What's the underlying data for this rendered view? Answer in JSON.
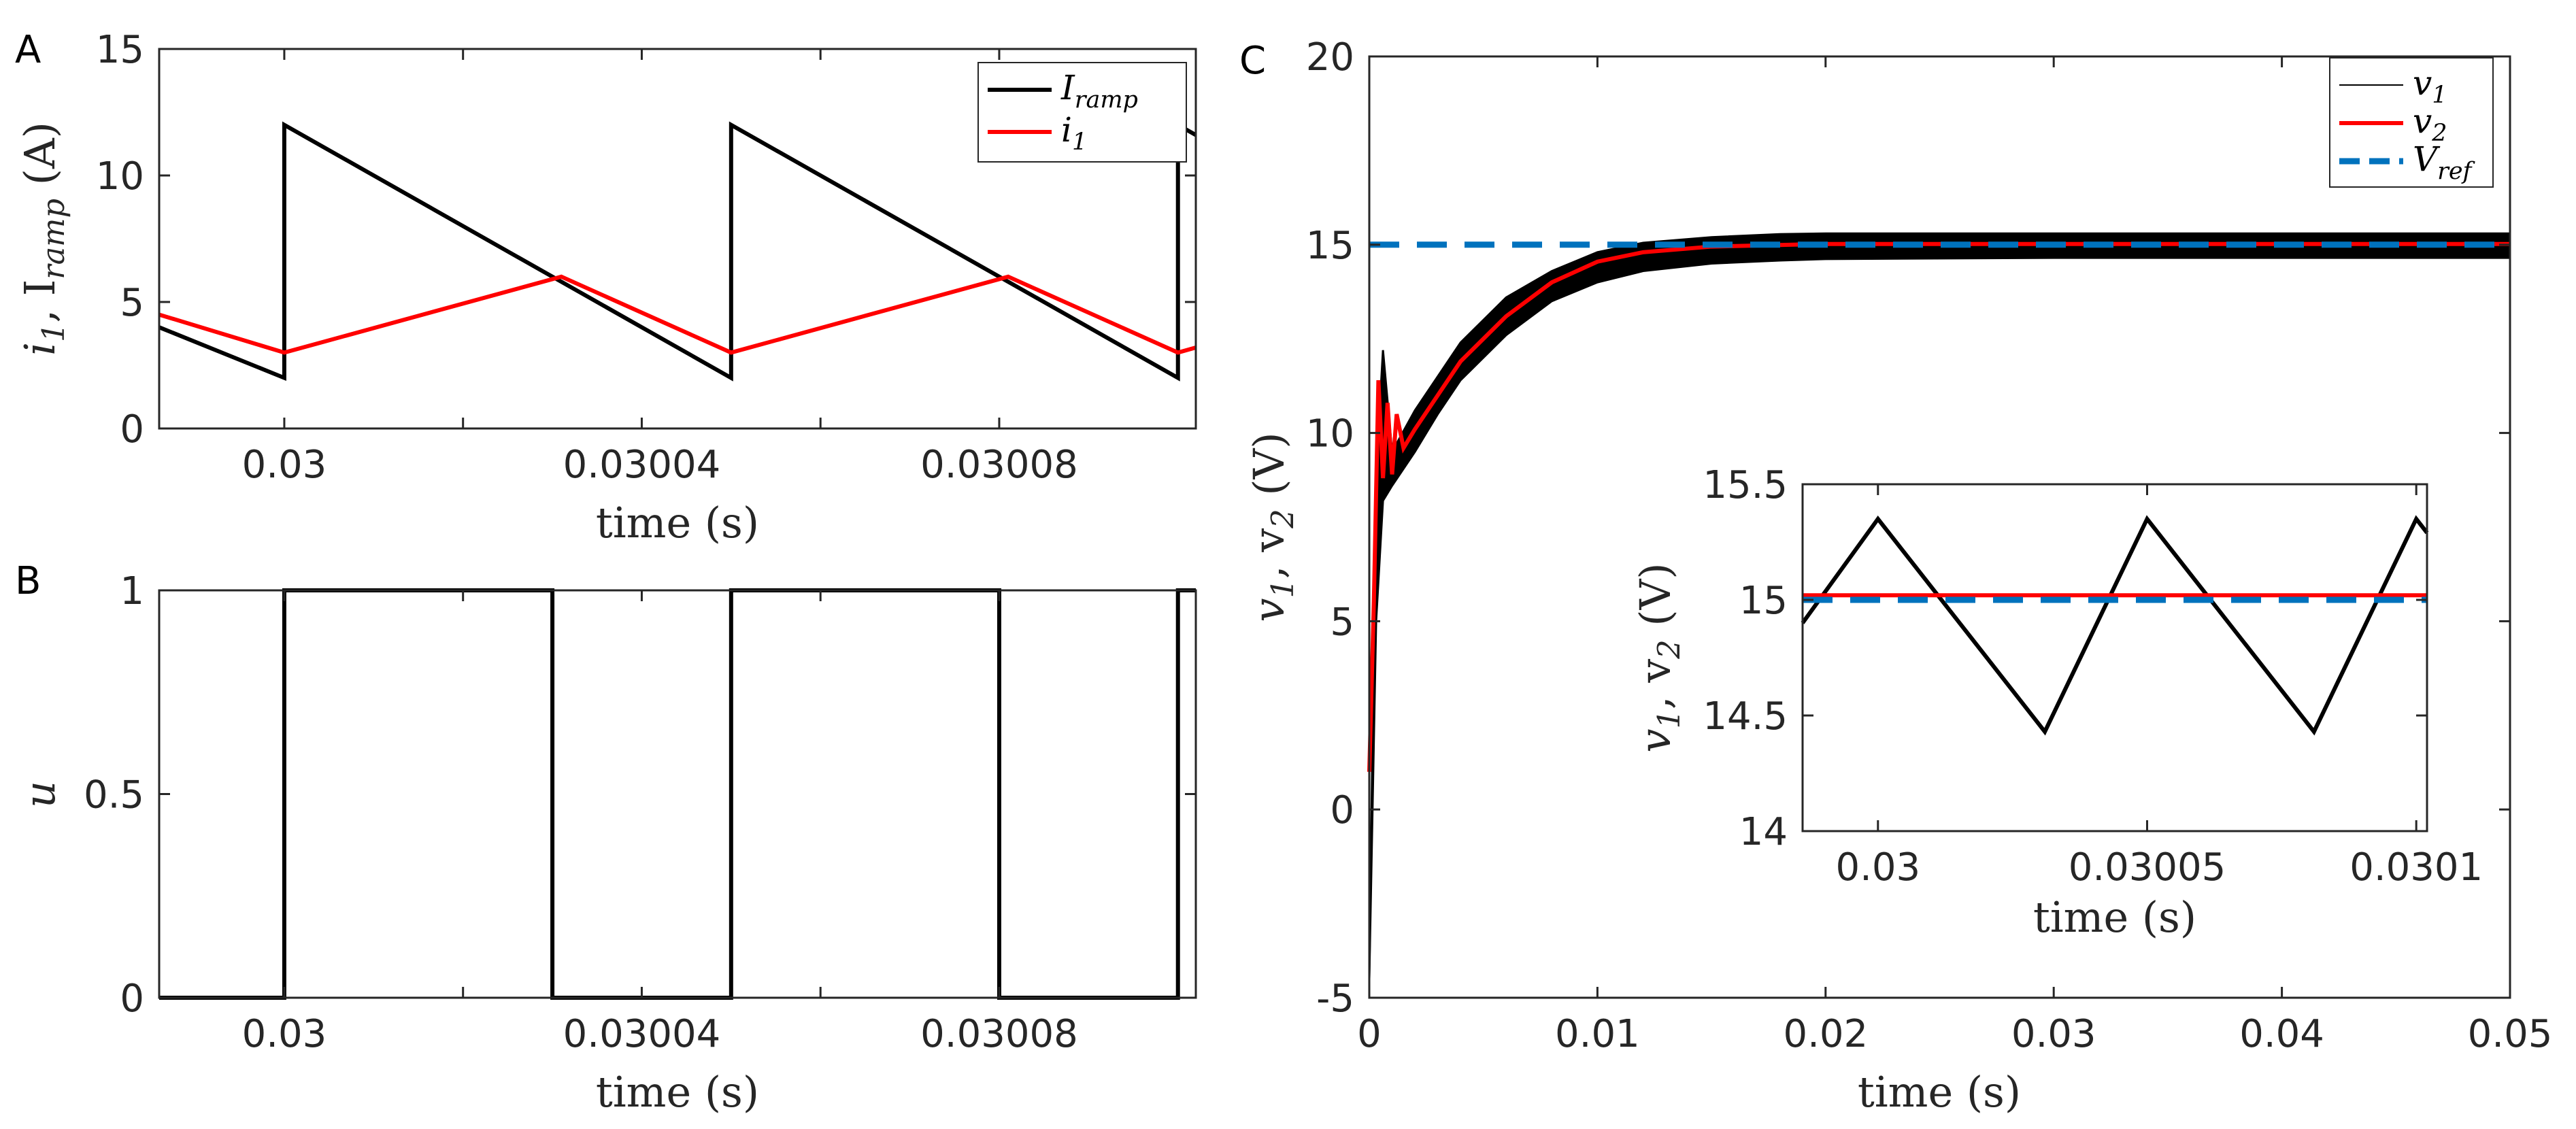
{
  "chart_data": [
    {
      "panel": "A",
      "type": "line",
      "xlabel": "time (s)",
      "ylabel": "i₁, I_ramp (A)",
      "ylabel_parts": [
        "i",
        "1",
        ", I",
        "ramp",
        " (A)"
      ],
      "xlim": [
        0.029986,
        0.030102
      ],
      "ylim": [
        0,
        15
      ],
      "xticks": [
        0.03,
        0.03004,
        0.03008
      ],
      "xtick_labels": [
        "0.03",
        "0.03004",
        "0.03008"
      ],
      "yticks": [
        0,
        5,
        10,
        15
      ],
      "ytick_labels": [
        "0",
        "5",
        "10",
        "15"
      ],
      "legend": [
        {
          "base": "I",
          "sub": "ramp",
          "color": "#000000"
        },
        {
          "base": "i",
          "sub": "1",
          "color": "#ff0000"
        }
      ],
      "series": [
        {
          "name": "I_ramp",
          "color": "#000000",
          "x": [
            0.029986,
            0.03,
            0.03,
            0.03005,
            0.03005,
            0.0301,
            0.0301,
            0.030102
          ],
          "y": [
            4.0,
            2.0,
            12.0,
            2.0,
            12.0,
            2.0,
            12.0,
            11.6
          ]
        },
        {
          "name": "i_1",
          "color": "#ff0000",
          "x": [
            0.029986,
            0.03,
            0.030031,
            0.03005,
            0.030081,
            0.0301,
            0.030102
          ],
          "y": [
            4.5,
            3.0,
            6.0,
            3.0,
            6.0,
            3.0,
            3.2
          ]
        }
      ]
    },
    {
      "panel": "B",
      "type": "line",
      "xlabel": "time (s)",
      "ylabel": "u",
      "xlim": [
        0.029986,
        0.030102
      ],
      "ylim": [
        0,
        1
      ],
      "xticks": [
        0.03,
        0.03004,
        0.03008
      ],
      "xtick_labels": [
        "0.03",
        "0.03004",
        "0.03008"
      ],
      "yticks": [
        0,
        0.5,
        1
      ],
      "ytick_labels": [
        "0",
        "0.5",
        "1"
      ],
      "series": [
        {
          "name": "u",
          "color": "#000000",
          "x": [
            0.029986,
            0.03,
            0.03,
            0.03003,
            0.03003,
            0.03005,
            0.03005,
            0.03008,
            0.03008,
            0.0301,
            0.0301,
            0.030102
          ],
          "y": [
            0,
            0,
            1,
            1,
            0,
            0,
            1,
            1,
            0,
            0,
            1,
            1
          ]
        }
      ]
    },
    {
      "panel": "C",
      "type": "line",
      "xlabel": "time (s)",
      "ylabel": "v₁, v₂ (V)",
      "ylabel_parts": [
        "v",
        "1",
        ", v",
        "2",
        " (V)"
      ],
      "xlim": [
        0,
        0.05
      ],
      "ylim": [
        -5,
        20
      ],
      "xticks": [
        0,
        0.01,
        0.02,
        0.03,
        0.04,
        0.05
      ],
      "xtick_labels": [
        "0",
        "0.01",
        "0.02",
        "0.03",
        "0.04",
        "0.05"
      ],
      "yticks": [
        -5,
        0,
        5,
        10,
        15,
        20
      ],
      "ytick_labels": [
        "-5",
        "0",
        "5",
        "10",
        "15",
        "20"
      ],
      "legend": [
        {
          "base": "v",
          "sub": "1",
          "color": "#000000"
        },
        {
          "base": "v",
          "sub": "2",
          "color": "#ff0000"
        },
        {
          "base": "V",
          "sub": "ref",
          "color": "#0072bd"
        }
      ],
      "series": [
        {
          "name": "v1_upper",
          "color": "#000000",
          "x": [
            0,
            0.0003,
            0.0006,
            0.001,
            0.002,
            0.003,
            0.004,
            0.006,
            0.008,
            0.01,
            0.012,
            0.015,
            0.018,
            0.02,
            0.03,
            0.04,
            0.05
          ],
          "y": [
            -4.5,
            9,
            12.2,
            9.5,
            10.6,
            11.5,
            12.4,
            13.6,
            14.3,
            14.8,
            15.05,
            15.2,
            15.28,
            15.3,
            15.3,
            15.3,
            15.3
          ]
        },
        {
          "name": "v1_lower",
          "color": "#000000",
          "x": [
            0,
            0.0003,
            0.0006,
            0.001,
            0.002,
            0.003,
            0.004,
            0.006,
            0.008,
            0.01,
            0.012,
            0.015,
            0.018,
            0.02,
            0.03,
            0.04,
            0.05
          ],
          "y": [
            -4.5,
            5,
            8.2,
            8.6,
            9.5,
            10.5,
            11.4,
            12.6,
            13.5,
            14.0,
            14.3,
            14.5,
            14.58,
            14.62,
            14.65,
            14.65,
            14.65
          ]
        },
        {
          "name": "v2",
          "color": "#ff0000",
          "x": [
            0,
            0.0002,
            0.0004,
            0.0006,
            0.0008,
            0.001,
            0.0012,
            0.0015,
            0.002,
            0.003,
            0.004,
            0.006,
            0.008,
            0.01,
            0.012,
            0.015,
            0.02,
            0.03,
            0.04,
            0.05
          ],
          "y": [
            1,
            5.5,
            11.4,
            8.8,
            10.8,
            8.9,
            10.5,
            9.6,
            10.1,
            11.0,
            11.9,
            13.1,
            14.0,
            14.55,
            14.8,
            14.95,
            15.02,
            15.02,
            15.02,
            15.02
          ]
        },
        {
          "name": "V_ref",
          "color": "#0072bd",
          "dashed": true,
          "x": [
            0,
            0.05
          ],
          "y": [
            15,
            15
          ]
        }
      ]
    },
    {
      "panel": "C-inset",
      "type": "line",
      "xlabel": "time (s)",
      "ylabel": "v₁, v₂ (V)",
      "ylabel_parts": [
        "v",
        "1",
        ", v",
        "2",
        " (V)"
      ],
      "xlim": [
        0.029986,
        0.030102
      ],
      "ylim": [
        14,
        15.5
      ],
      "xticks": [
        0.03,
        0.03005,
        0.0301
      ],
      "xtick_labels": [
        "0.03",
        "0.03005",
        "0.0301"
      ],
      "yticks": [
        14,
        14.5,
        15,
        15.5
      ],
      "ytick_labels": [
        "14",
        "14.5",
        "15",
        "15.5"
      ],
      "series": [
        {
          "name": "v1",
          "color": "#000000",
          "x": [
            0.029986,
            0.03,
            0.030031,
            0.03005,
            0.030081,
            0.0301,
            0.030102
          ],
          "y": [
            14.9,
            15.35,
            14.43,
            15.35,
            14.43,
            15.35,
            15.29
          ]
        },
        {
          "name": "v2",
          "color": "#ff0000",
          "x": [
            0.029986,
            0.030102
          ],
          "y": [
            15.02,
            15.02
          ]
        },
        {
          "name": "V_ref",
          "color": "#0072bd",
          "dashed": true,
          "x": [
            0.029986,
            0.030102
          ],
          "y": [
            15,
            15
          ]
        }
      ]
    }
  ],
  "panels": {
    "a": "A",
    "b": "B",
    "c": "C"
  }
}
